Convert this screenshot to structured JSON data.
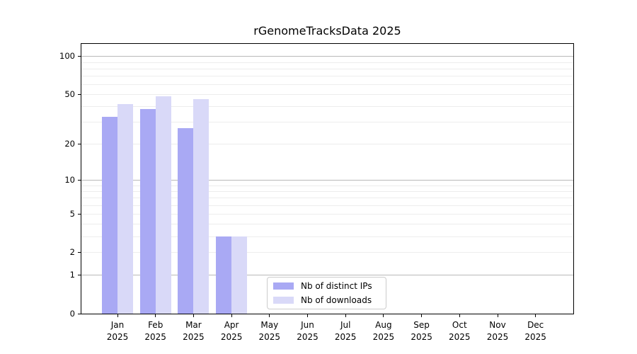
{
  "chart_data": {
    "type": "bar",
    "title": "rGenomeTracksData 2025",
    "categories": [
      "Jan",
      "Feb",
      "Mar",
      "Apr",
      "May",
      "Jun",
      "Jul",
      "Aug",
      "Sep",
      "Oct",
      "Nov",
      "Dec"
    ],
    "x_tick_year": "2025",
    "series": [
      {
        "name": "Nb of distinct IPs",
        "color": "#a9a9f4",
        "values": [
          33,
          38,
          27,
          3,
          0,
          0,
          0,
          0,
          0,
          0,
          0,
          0
        ]
      },
      {
        "name": "Nb of downloads",
        "color": "#d9d9f8",
        "values": [
          42,
          48,
          46,
          3,
          0,
          0,
          0,
          0,
          0,
          0,
          0,
          0
        ]
      }
    ],
    "y_axis": {
      "scale": "log10(1+y)",
      "tick_values": [
        0,
        1,
        2,
        5,
        10,
        20,
        50,
        100
      ],
      "tick_labels": [
        "0",
        "1",
        "2",
        "5",
        "10",
        "20",
        "50",
        "100"
      ],
      "major_gridlines": [
        1,
        10,
        100
      ],
      "minor_gridlines": [
        2,
        3,
        4,
        5,
        6,
        7,
        8,
        9,
        20,
        30,
        40,
        50,
        60,
        70,
        80,
        90
      ],
      "ymax": 125
    },
    "legend": {
      "position": "lower-center"
    },
    "colors": {
      "major_grid": "#b9b9b9",
      "minor_grid": "#ededed",
      "axis": "#000000",
      "background": "#ffffff"
    }
  }
}
